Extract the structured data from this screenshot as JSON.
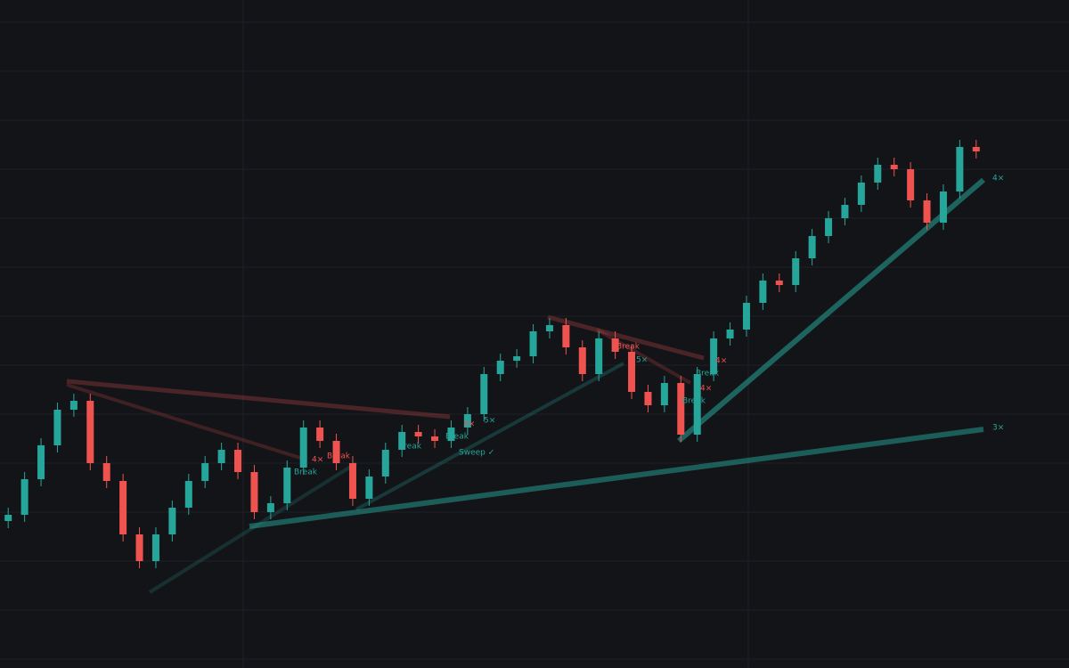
{
  "chart_data": {
    "type": "candlestick",
    "x": [
      0,
      1,
      2,
      3,
      4,
      5,
      6,
      7,
      8,
      9,
      10,
      11,
      12,
      13,
      14,
      15,
      16,
      17,
      18,
      19,
      20,
      21,
      22,
      23,
      24,
      25,
      26,
      27,
      28,
      29,
      30,
      31,
      32,
      33,
      34,
      35,
      36,
      37,
      38,
      39,
      40,
      41,
      42,
      43,
      44,
      45,
      46,
      47,
      48,
      49,
      50,
      51,
      52,
      53,
      54,
      55,
      56,
      57,
      58,
      59
    ],
    "open": [
      165,
      172,
      212,
      250,
      290,
      300,
      230,
      210,
      150,
      120,
      150,
      180,
      210,
      230,
      245,
      220,
      175,
      185,
      225,
      270,
      255,
      230,
      190,
      215,
      245,
      265,
      260,
      255,
      270,
      285,
      330,
      345,
      350,
      378,
      385,
      360,
      330,
      370,
      355,
      310,
      295,
      320,
      262,
      330,
      370,
      380,
      410,
      435,
      430,
      460,
      485,
      505,
      520,
      545,
      565,
      560,
      525,
      500,
      535,
      585
    ],
    "high": [
      180,
      220,
      258,
      298,
      308,
      308,
      238,
      218,
      158,
      158,
      188,
      218,
      238,
      253,
      253,
      228,
      193,
      233,
      278,
      278,
      263,
      238,
      223,
      253,
      273,
      273,
      268,
      278,
      293,
      338,
      353,
      358,
      386,
      393,
      393,
      368,
      378,
      378,
      363,
      318,
      328,
      328,
      338,
      378,
      388,
      418,
      443,
      443,
      468,
      493,
      513,
      528,
      553,
      573,
      573,
      568,
      533,
      543,
      593,
      593
    ],
    "low": [
      157,
      164,
      204,
      242,
      282,
      222,
      202,
      142,
      112,
      112,
      142,
      172,
      202,
      222,
      212,
      167,
      167,
      177,
      217,
      247,
      222,
      182,
      182,
      207,
      237,
      252,
      247,
      247,
      262,
      277,
      322,
      337,
      342,
      370,
      352,
      322,
      322,
      347,
      302,
      287,
      287,
      254,
      254,
      322,
      362,
      372,
      402,
      422,
      422,
      452,
      477,
      497,
      512,
      537,
      552,
      517,
      492,
      492,
      527,
      572
    ],
    "close": [
      172,
      212,
      250,
      290,
      300,
      230,
      210,
      150,
      120,
      150,
      180,
      210,
      230,
      245,
      220,
      175,
      185,
      225,
      270,
      255,
      230,
      190,
      215,
      245,
      265,
      260,
      255,
      270,
      285,
      330,
      345,
      350,
      378,
      385,
      360,
      330,
      370,
      355,
      310,
      295,
      320,
      262,
      330,
      370,
      380,
      410,
      435,
      430,
      460,
      485,
      505,
      520,
      545,
      565,
      560,
      525,
      500,
      535,
      585,
      580
    ],
    "xlim": [
      -0.5,
      59.5
    ],
    "ylim": [
      0,
      750
    ],
    "up_color": "#26a69a",
    "down_color": "#ef5350",
    "annotations": [
      "4×",
      "3×",
      "Break",
      "Break",
      "4×",
      "Break",
      "Break",
      "3×",
      "5×",
      "Sweep ✓",
      "Break",
      "5×",
      "4×",
      "Break",
      "4×",
      "Break"
    ]
  }
}
